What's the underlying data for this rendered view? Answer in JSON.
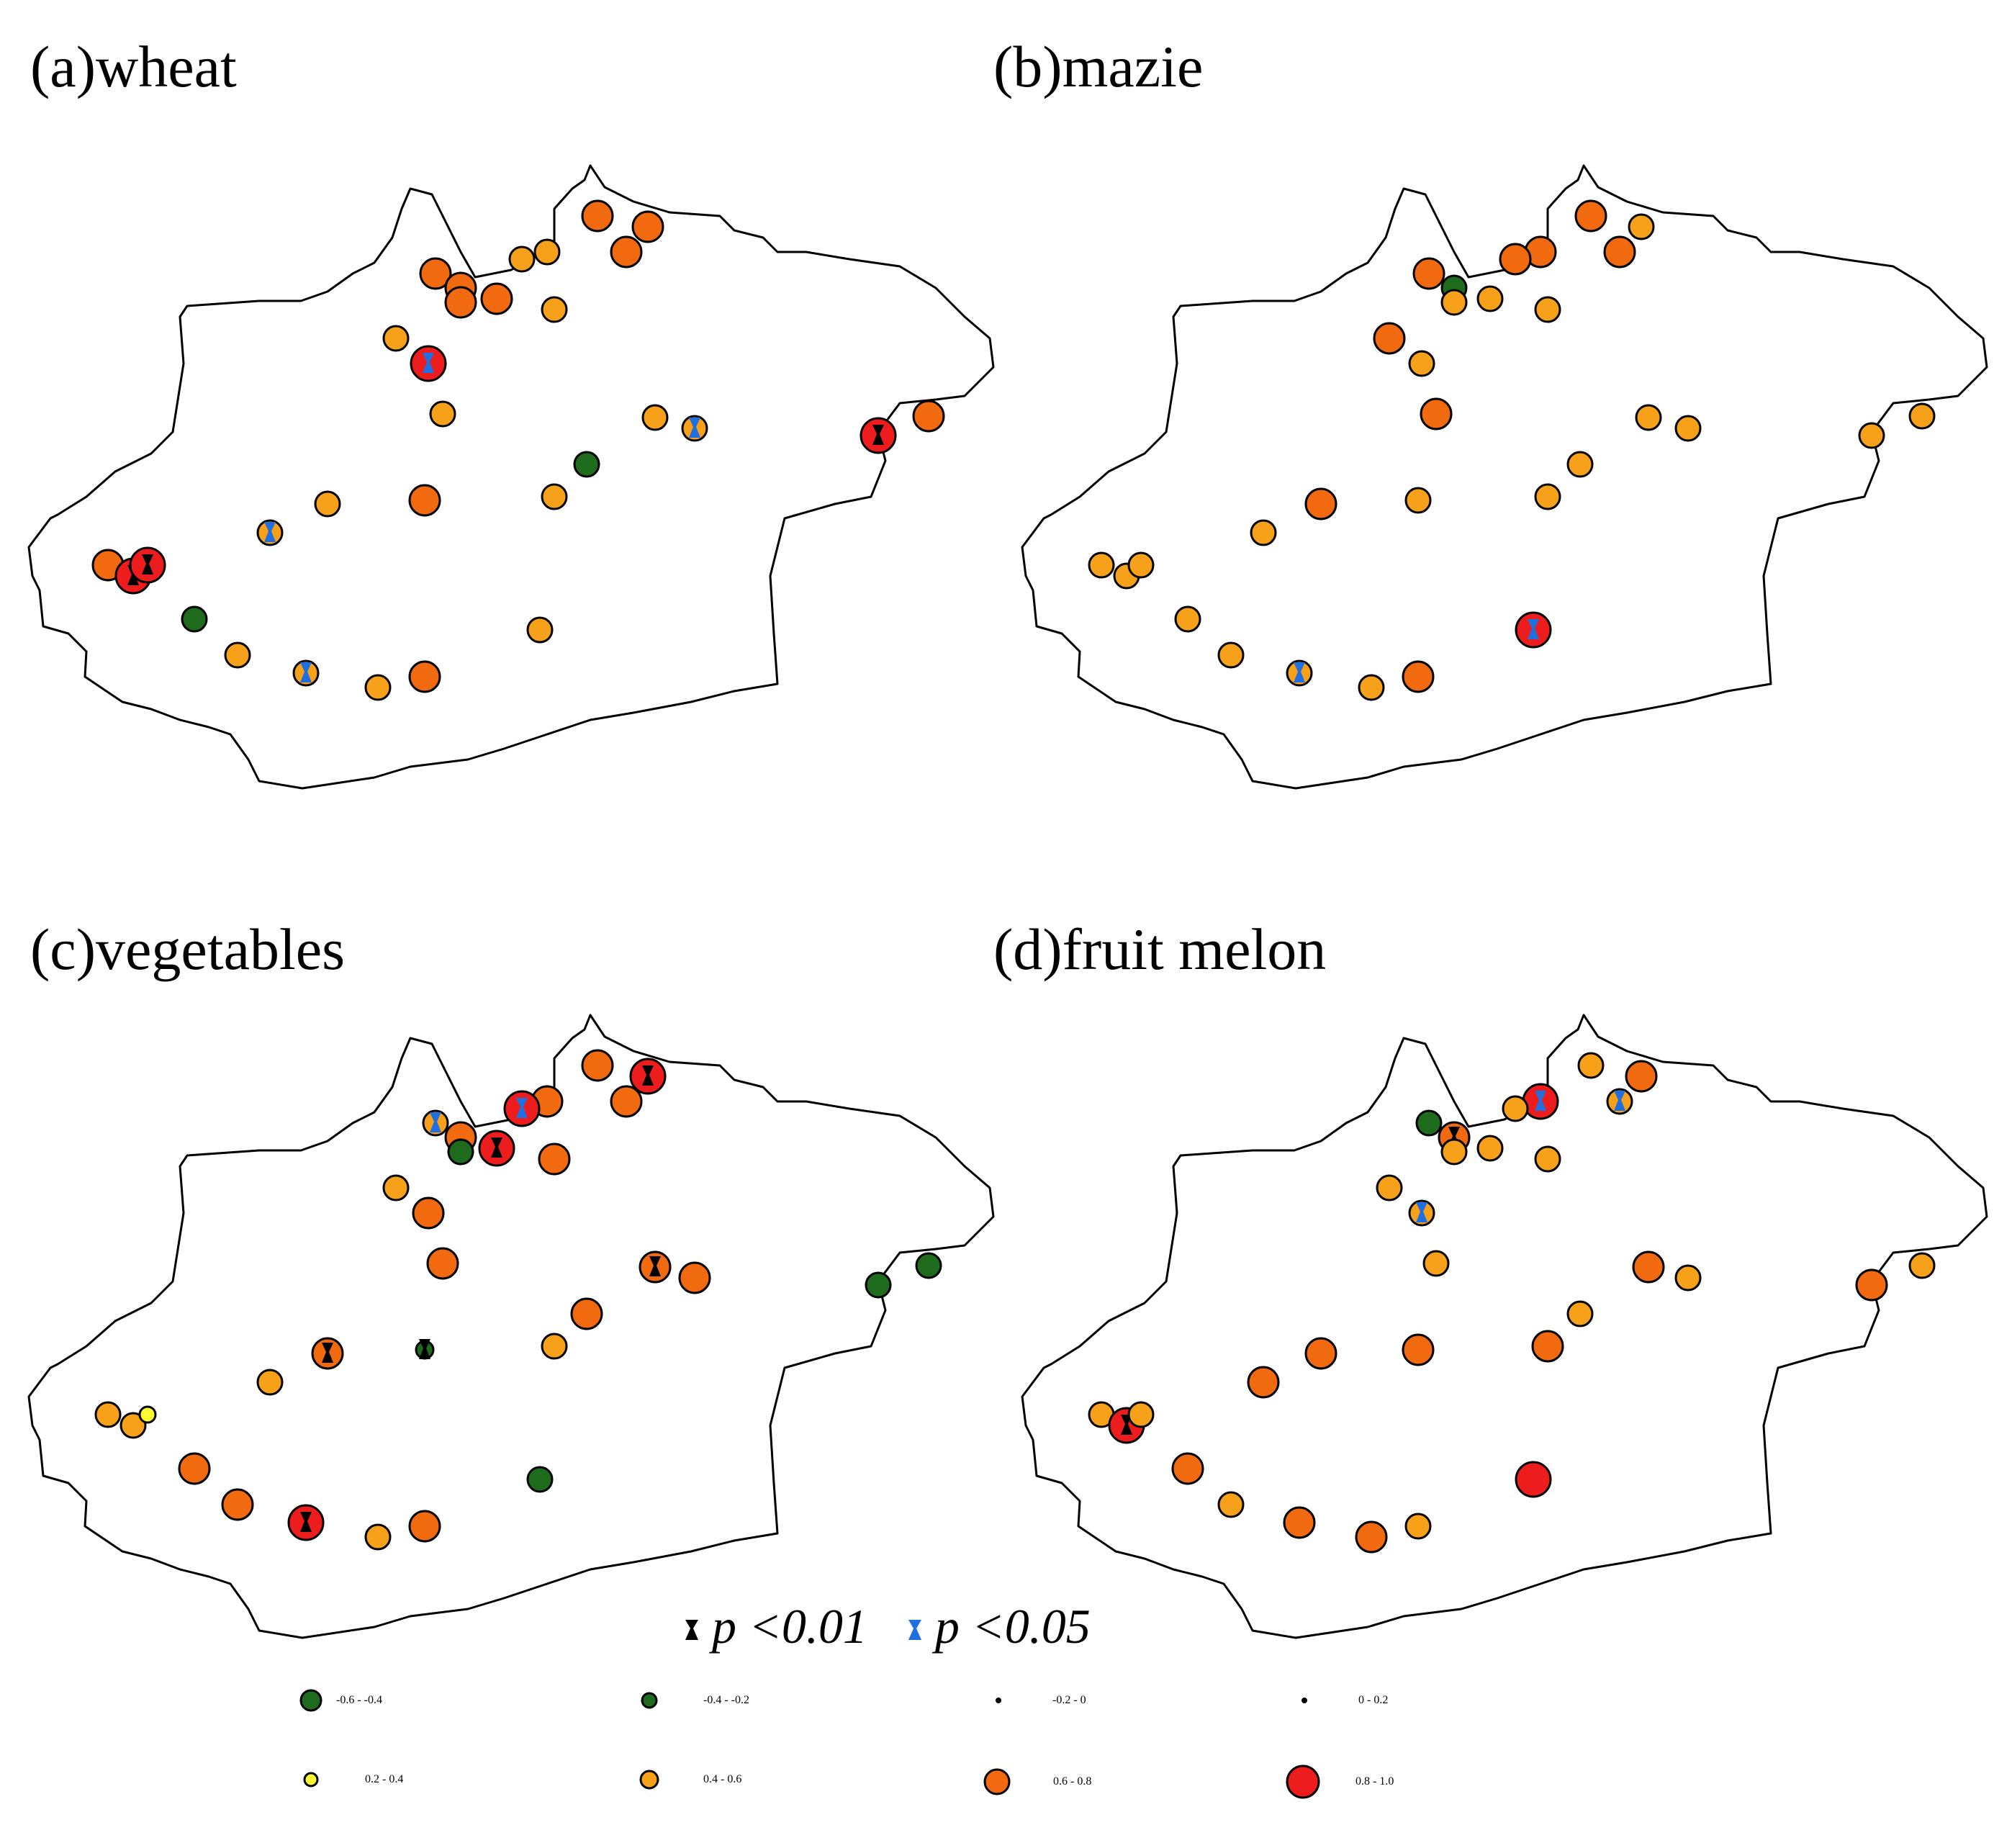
{
  "panels": [
    {
      "id": "a",
      "title": "(a)wheat",
      "crop": "wheat",
      "stations": [
        {
          "n": 1,
          "c": "0.6-0.8",
          "s": ""
        },
        {
          "n": 2,
          "c": "0.6-0.8",
          "s": ""
        },
        {
          "n": 3,
          "c": "0.6-0.8",
          "s": ""
        },
        {
          "n": 4,
          "c": "0.4-0.6",
          "s": ""
        },
        {
          "n": 5,
          "c": "0.4-0.6",
          "s": ""
        },
        {
          "n": 6,
          "c": "0.6-0.8",
          "s": ""
        },
        {
          "n": 7,
          "c": "0.6-0.8",
          "s": ""
        },
        {
          "n": 8,
          "c": "0.6-0.8",
          "s": ""
        },
        {
          "n": 9,
          "c": "0.4-0.6",
          "s": ""
        },
        {
          "n": 10,
          "c": "0.6-0.8",
          "s": ""
        },
        {
          "n": 11,
          "c": "0.8-1.0",
          "s": "p005"
        },
        {
          "n": 12,
          "c": "0.4-0.6",
          "s": ""
        },
        {
          "n": 13,
          "c": "0.4-0.6",
          "s": ""
        },
        {
          "n": 14,
          "c": "0.4-0.6",
          "s": "p005"
        },
        {
          "n": 15,
          "c": "0.4-0.6",
          "s": ""
        },
        {
          "n": 16,
          "c": "0.8-1.0",
          "s": "p001"
        },
        {
          "n": 17,
          "c": "0.6-0.8",
          "s": ""
        },
        {
          "n": 18,
          "c": "0.4-0.6",
          "s": ""
        },
        {
          "n": 19,
          "c": "-0.6--0.4",
          "s": ""
        },
        {
          "n": 20,
          "c": "0.6-0.8",
          "s": ""
        },
        {
          "n": 21,
          "c": "0.4-0.6",
          "s": "p005"
        },
        {
          "n": 22,
          "c": "0.4-0.6",
          "s": ""
        },
        {
          "n": 23,
          "c": "0.6-0.8",
          "s": ""
        },
        {
          "n": 24,
          "c": "0.8-1.0",
          "s": "p001"
        },
        {
          "n": 25,
          "c": "0.8-1.0",
          "s": "p001"
        },
        {
          "n": 26,
          "c": "-0.6--0.4",
          "s": ""
        },
        {
          "n": 27,
          "c": "0.4-0.6",
          "s": ""
        },
        {
          "n": 28,
          "c": "0.4-0.6",
          "s": "p005"
        },
        {
          "n": 29,
          "c": "0.4-0.6",
          "s": ""
        },
        {
          "n": 30,
          "c": "0.6-0.8",
          "s": ""
        },
        {
          "n": 31,
          "c": "0.4-0.6",
          "s": ""
        }
      ]
    },
    {
      "id": "b",
      "title": "(b)mazie",
      "crop": "maize",
      "stations": [
        {
          "n": 1,
          "c": "0.6-0.8",
          "s": ""
        },
        {
          "n": 2,
          "c": "-0.6--0.4",
          "s": ""
        },
        {
          "n": 3,
          "c": "0.4-0.6",
          "s": ""
        },
        {
          "n": 4,
          "c": "0.6-0.8",
          "s": ""
        },
        {
          "n": 5,
          "c": "0.6-0.8",
          "s": ""
        },
        {
          "n": 6,
          "c": "0.4-0.6",
          "s": ""
        },
        {
          "n": 7,
          "c": "0.6-0.8",
          "s": ""
        },
        {
          "n": 8,
          "c": "0.6-0.8",
          "s": ""
        },
        {
          "n": 9,
          "c": "0.4-0.6",
          "s": ""
        },
        {
          "n": 10,
          "c": "0.4-0.6",
          "s": ""
        },
        {
          "n": 11,
          "c": "0.4-0.6",
          "s": ""
        },
        {
          "n": 12,
          "c": "0.6-0.8",
          "s": ""
        },
        {
          "n": 13,
          "c": "0.6-0.8",
          "s": ""
        },
        {
          "n": 14,
          "c": "0.4-0.6",
          "s": ""
        },
        {
          "n": 15,
          "c": "0.4-0.6",
          "s": ""
        },
        {
          "n": 16,
          "c": "0.4-0.6",
          "s": ""
        },
        {
          "n": 17,
          "c": "0.4-0.6",
          "s": ""
        },
        {
          "n": 18,
          "c": "0.6-0.8",
          "s": ""
        },
        {
          "n": 19,
          "c": "0.4-0.6",
          "s": ""
        },
        {
          "n": 20,
          "c": "0.4-0.6",
          "s": ""
        },
        {
          "n": 21,
          "c": "0.4-0.6",
          "s": ""
        },
        {
          "n": 22,
          "c": "0.4-0.6",
          "s": ""
        },
        {
          "n": 23,
          "c": "0.4-0.6",
          "s": ""
        },
        {
          "n": 24,
          "c": "0.4-0.6",
          "s": ""
        },
        {
          "n": 25,
          "c": "0.4-0.6",
          "s": ""
        },
        {
          "n": 26,
          "c": "0.4-0.6",
          "s": ""
        },
        {
          "n": 27,
          "c": "0.4-0.6",
          "s": ""
        },
        {
          "n": 28,
          "c": "0.4-0.6",
          "s": "p005"
        },
        {
          "n": 29,
          "c": "0.4-0.6",
          "s": ""
        },
        {
          "n": 30,
          "c": "0.6-0.8",
          "s": ""
        },
        {
          "n": 31,
          "c": "0.8-1.0",
          "s": "p005"
        }
      ]
    },
    {
      "id": "c",
      "title": "(c)vegetables",
      "crop": "vegetables",
      "stations": [
        {
          "n": 1,
          "c": "0.4-0.6",
          "s": "p005"
        },
        {
          "n": 2,
          "c": "0.6-0.8",
          "s": ""
        },
        {
          "n": 3,
          "c": "0.8-1.0",
          "s": "p001"
        },
        {
          "n": 4,
          "c": "0.6-0.8",
          "s": ""
        },
        {
          "n": 5,
          "c": "0.8-1.0",
          "s": "p005"
        },
        {
          "n": 6,
          "c": "0.8-1.0",
          "s": "p001"
        },
        {
          "n": 7,
          "c": "0.6-0.8",
          "s": ""
        },
        {
          "n": 8,
          "c": "0.6-0.8",
          "s": ""
        },
        {
          "n": 9,
          "c": "0.6-0.8",
          "s": ""
        },
        {
          "n": 10,
          "c": "-0.6--0.4",
          "s": ""
        },
        {
          "n": 11,
          "c": "0.6-0.8",
          "s": ""
        },
        {
          "n": 12,
          "c": "0.4-0.6",
          "s": ""
        },
        {
          "n": 13,
          "c": "0.6-0.8",
          "s": ""
        },
        {
          "n": 14,
          "c": "0.6-0.8",
          "s": ""
        },
        {
          "n": 15,
          "c": "0.6-0.8",
          "s": "p001"
        },
        {
          "n": 16,
          "c": "-0.6--0.4",
          "s": ""
        },
        {
          "n": 17,
          "c": "-0.6--0.4",
          "s": ""
        },
        {
          "n": 18,
          "c": "0.6-0.8",
          "s": "p001"
        },
        {
          "n": 19,
          "c": "0.6-0.8",
          "s": ""
        },
        {
          "n": 20,
          "c": "-0.4--0.2",
          "s": "p001"
        },
        {
          "n": 21,
          "c": "0.4-0.6",
          "s": ""
        },
        {
          "n": 22,
          "c": "0.4-0.6",
          "s": ""
        },
        {
          "n": 23,
          "c": "0.4-0.6",
          "s": ""
        },
        {
          "n": 24,
          "c": "0.4-0.6",
          "s": ""
        },
        {
          "n": 25,
          "c": "0.2-0.4",
          "s": ""
        },
        {
          "n": 26,
          "c": "0.6-0.8",
          "s": ""
        },
        {
          "n": 27,
          "c": "0.6-0.8",
          "s": ""
        },
        {
          "n": 28,
          "c": "0.8-1.0",
          "s": "p001"
        },
        {
          "n": 29,
          "c": "0.4-0.6",
          "s": ""
        },
        {
          "n": 30,
          "c": "0.6-0.8",
          "s": ""
        },
        {
          "n": 31,
          "c": "-0.6--0.4",
          "s": ""
        }
      ]
    },
    {
      "id": "d",
      "title": "(d)fruit melon",
      "crop": "fruit melon",
      "stations": [
        {
          "n": 1,
          "c": "-0.6--0.4",
          "s": ""
        },
        {
          "n": 2,
          "c": "0.6-0.8",
          "s": "p001"
        },
        {
          "n": 3,
          "c": "0.4-0.6",
          "s": ""
        },
        {
          "n": 4,
          "c": "0.8-1.0",
          "s": "p005"
        },
        {
          "n": 5,
          "c": "0.4-0.6",
          "s": ""
        },
        {
          "n": 6,
          "c": "0.6-0.8",
          "s": ""
        },
        {
          "n": 7,
          "c": "0.4-0.6",
          "s": "p005"
        },
        {
          "n": 8,
          "c": "0.4-0.6",
          "s": ""
        },
        {
          "n": 9,
          "c": "0.4-0.6",
          "s": ""
        },
        {
          "n": 10,
          "c": "0.4-0.6",
          "s": ""
        },
        {
          "n": 11,
          "c": "0.4-0.6",
          "s": "p005"
        },
        {
          "n": 12,
          "c": "0.4-0.6",
          "s": ""
        },
        {
          "n": 13,
          "c": "0.4-0.6",
          "s": ""
        },
        {
          "n": 14,
          "c": "0.4-0.6",
          "s": ""
        },
        {
          "n": 15,
          "c": "0.6-0.8",
          "s": ""
        },
        {
          "n": 16,
          "c": "0.6-0.8",
          "s": ""
        },
        {
          "n": 17,
          "c": "0.4-0.6",
          "s": ""
        },
        {
          "n": 18,
          "c": "0.6-0.8",
          "s": ""
        },
        {
          "n": 19,
          "c": "0.4-0.6",
          "s": ""
        },
        {
          "n": 20,
          "c": "0.6-0.8",
          "s": ""
        },
        {
          "n": 21,
          "c": "0.6-0.8",
          "s": ""
        },
        {
          "n": 22,
          "c": "0.6-0.8",
          "s": ""
        },
        {
          "n": 23,
          "c": "0.4-0.6",
          "s": ""
        },
        {
          "n": 24,
          "c": "0.8-1.0",
          "s": "p001"
        },
        {
          "n": 25,
          "c": "0.4-0.6",
          "s": ""
        },
        {
          "n": 26,
          "c": "0.6-0.8",
          "s": ""
        },
        {
          "n": 27,
          "c": "0.4-0.6",
          "s": ""
        },
        {
          "n": 28,
          "c": "0.6-0.8",
          "s": ""
        },
        {
          "n": 29,
          "c": "0.6-0.8",
          "s": ""
        },
        {
          "n": 30,
          "c": "0.4-0.6",
          "s": ""
        },
        {
          "n": 31,
          "c": "0.8-1.0",
          "s": ""
        }
      ]
    }
  ],
  "significance": [
    {
      "key": "p001",
      "label": "p <0.01",
      "color": "#000000"
    },
    {
      "key": "p005",
      "label": "p <0.05",
      "color": "#1f6fe0"
    }
  ],
  "legend": [
    {
      "key": "-0.6--0.4",
      "label": "-0.6 - -0.4",
      "color": "#1e6b1e"
    },
    {
      "key": "-0.4--0.2",
      "label": "-0.4 - -0.2",
      "color": "#1e6b1e"
    },
    {
      "key": "-0.2-0",
      "label": "-0.2 - 0",
      "color": "#000000"
    },
    {
      "key": "0-0.2",
      "label": "0 - 0.2",
      "color": "#000000"
    },
    {
      "key": "0.2-0.4",
      "label": "0.2 - 0.4",
      "color": "#ffff33"
    },
    {
      "key": "0.4-0.6",
      "label": "0.4 - 0.6",
      "color": "#f7a11a"
    },
    {
      "key": "0.6-0.8",
      "label": "0.6 - 0.8",
      "color": "#f26a0f"
    },
    {
      "key": "0.8-1.0",
      "label": "0.8 - 1.0",
      "color": "#ee1d1d"
    }
  ]
}
